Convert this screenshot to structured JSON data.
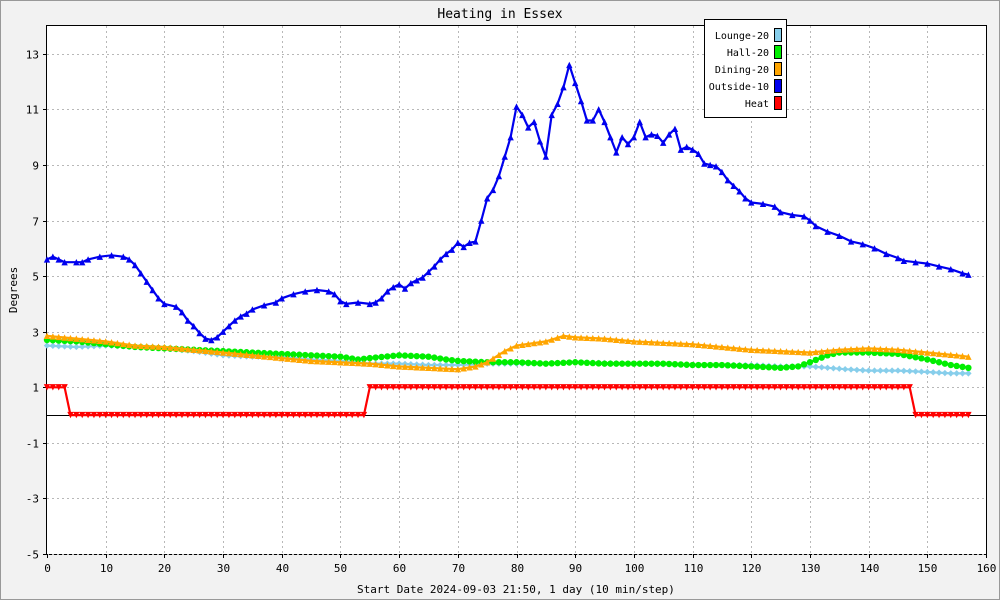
{
  "chart_data": {
    "type": "line",
    "title": "Heating in Essex",
    "xlabel": "Start Date 2024-09-03 21:50, 1 day (10 min/step)",
    "ylabel": "Degrees",
    "xlim": [
      0,
      160
    ],
    "ylim": [
      -5,
      14
    ],
    "x_ticks": [
      0,
      10,
      20,
      30,
      40,
      50,
      60,
      70,
      80,
      90,
      100,
      110,
      120,
      130,
      140,
      150,
      160
    ],
    "y_ticks": [
      -5,
      -3,
      -1,
      1,
      3,
      5,
      7,
      9,
      11,
      13
    ],
    "grid": true,
    "legend_position": "top-right",
    "series": [
      {
        "name": "Lounge-20",
        "color": "#87ceeb",
        "marker": "diamond",
        "points": [
          [
            0,
            2.5
          ],
          [
            5,
            2.45
          ],
          [
            10,
            2.5
          ],
          [
            15,
            2.45
          ],
          [
            20,
            2.4
          ],
          [
            25,
            2.3
          ],
          [
            30,
            2.15
          ],
          [
            35,
            2.1
          ],
          [
            40,
            2.1
          ],
          [
            45,
            2.0
          ],
          [
            50,
            1.95
          ],
          [
            55,
            1.85
          ],
          [
            60,
            1.85
          ],
          [
            65,
            1.8
          ],
          [
            70,
            1.8
          ],
          [
            75,
            1.85
          ],
          [
            80,
            1.85
          ],
          [
            85,
            1.85
          ],
          [
            90,
            1.9
          ],
          [
            100,
            1.85
          ],
          [
            110,
            1.8
          ],
          [
            120,
            1.8
          ],
          [
            125,
            1.75
          ],
          [
            128,
            1.75
          ],
          [
            130,
            1.75
          ],
          [
            133,
            1.7
          ],
          [
            136,
            1.65
          ],
          [
            140,
            1.6
          ],
          [
            145,
            1.6
          ],
          [
            150,
            1.55
          ],
          [
            154,
            1.5
          ],
          [
            157,
            1.5
          ]
        ]
      },
      {
        "name": "Hall-20",
        "color": "#00ee00",
        "marker": "circle",
        "points": [
          [
            0,
            2.7
          ],
          [
            5,
            2.65
          ],
          [
            10,
            2.55
          ],
          [
            15,
            2.45
          ],
          [
            20,
            2.4
          ],
          [
            25,
            2.35
          ],
          [
            30,
            2.3
          ],
          [
            35,
            2.25
          ],
          [
            40,
            2.2
          ],
          [
            45,
            2.15
          ],
          [
            50,
            2.1
          ],
          [
            53,
            2.0
          ],
          [
            55,
            2.05
          ],
          [
            60,
            2.15
          ],
          [
            65,
            2.1
          ],
          [
            68,
            2.0
          ],
          [
            70,
            1.95
          ],
          [
            75,
            1.9
          ],
          [
            80,
            1.9
          ],
          [
            85,
            1.85
          ],
          [
            90,
            1.9
          ],
          [
            95,
            1.85
          ],
          [
            100,
            1.85
          ],
          [
            105,
            1.85
          ],
          [
            110,
            1.8
          ],
          [
            115,
            1.8
          ],
          [
            120,
            1.75
          ],
          [
            125,
            1.7
          ],
          [
            128,
            1.75
          ],
          [
            130,
            1.9
          ],
          [
            133,
            2.15
          ],
          [
            135,
            2.25
          ],
          [
            140,
            2.25
          ],
          [
            145,
            2.2
          ],
          [
            150,
            2.0
          ],
          [
            154,
            1.8
          ],
          [
            157,
            1.7
          ]
        ]
      },
      {
        "name": "Dining-20",
        "color": "#ffa500",
        "marker": "triangle",
        "points": [
          [
            0,
            2.85
          ],
          [
            5,
            2.75
          ],
          [
            10,
            2.65
          ],
          [
            15,
            2.5
          ],
          [
            20,
            2.45
          ],
          [
            25,
            2.35
          ],
          [
            30,
            2.25
          ],
          [
            35,
            2.15
          ],
          [
            40,
            2.05
          ],
          [
            45,
            1.95
          ],
          [
            50,
            1.9
          ],
          [
            55,
            1.85
          ],
          [
            60,
            1.75
          ],
          [
            65,
            1.7
          ],
          [
            70,
            1.65
          ],
          [
            73,
            1.75
          ],
          [
            75,
            1.9
          ],
          [
            78,
            2.3
          ],
          [
            80,
            2.5
          ],
          [
            85,
            2.65
          ],
          [
            88,
            2.85
          ],
          [
            90,
            2.8
          ],
          [
            95,
            2.75
          ],
          [
            100,
            2.65
          ],
          [
            105,
            2.6
          ],
          [
            110,
            2.55
          ],
          [
            115,
            2.45
          ],
          [
            120,
            2.35
          ],
          [
            125,
            2.3
          ],
          [
            130,
            2.25
          ],
          [
            135,
            2.35
          ],
          [
            140,
            2.4
          ],
          [
            145,
            2.35
          ],
          [
            150,
            2.25
          ],
          [
            155,
            2.15
          ],
          [
            157,
            2.1
          ]
        ]
      },
      {
        "name": "Outside-10",
        "color": "#0000ee",
        "marker": "triangle",
        "points": [
          [
            0,
            5.6
          ],
          [
            1,
            5.7
          ],
          [
            2,
            5.6
          ],
          [
            3,
            5.5
          ],
          [
            5,
            5.5
          ],
          [
            6,
            5.5
          ],
          [
            7,
            5.6
          ],
          [
            9,
            5.7
          ],
          [
            11,
            5.75
          ],
          [
            13,
            5.7
          ],
          [
            14,
            5.6
          ],
          [
            15,
            5.4
          ],
          [
            16,
            5.1
          ],
          [
            17,
            4.8
          ],
          [
            18,
            4.5
          ],
          [
            19,
            4.2
          ],
          [
            20,
            4.0
          ],
          [
            22,
            3.9
          ],
          [
            23,
            3.7
          ],
          [
            24,
            3.4
          ],
          [
            25,
            3.2
          ],
          [
            26,
            2.95
          ],
          [
            27,
            2.75
          ],
          [
            28,
            2.7
          ],
          [
            29,
            2.8
          ],
          [
            30,
            3.0
          ],
          [
            31,
            3.2
          ],
          [
            32,
            3.4
          ],
          [
            33,
            3.55
          ],
          [
            34,
            3.65
          ],
          [
            35,
            3.8
          ],
          [
            37,
            3.95
          ],
          [
            39,
            4.05
          ],
          [
            40,
            4.2
          ],
          [
            42,
            4.35
          ],
          [
            44,
            4.45
          ],
          [
            46,
            4.5
          ],
          [
            48,
            4.45
          ],
          [
            49,
            4.35
          ],
          [
            50,
            4.1
          ],
          [
            51,
            4.0
          ],
          [
            53,
            4.05
          ],
          [
            55,
            4.0
          ],
          [
            56,
            4.05
          ],
          [
            57,
            4.2
          ],
          [
            58,
            4.45
          ],
          [
            59,
            4.6
          ],
          [
            60,
            4.7
          ],
          [
            61,
            4.55
          ],
          [
            62,
            4.75
          ],
          [
            63,
            4.85
          ],
          [
            64,
            4.95
          ],
          [
            65,
            5.15
          ],
          [
            66,
            5.35
          ],
          [
            67,
            5.6
          ],
          [
            68,
            5.8
          ],
          [
            69,
            5.95
          ],
          [
            70,
            6.2
          ],
          [
            71,
            6.05
          ],
          [
            72,
            6.2
          ],
          [
            73,
            6.25
          ],
          [
            74,
            7.0
          ],
          [
            75,
            7.8
          ],
          [
            76,
            8.1
          ],
          [
            77,
            8.6
          ],
          [
            78,
            9.3
          ],
          [
            79,
            10.0
          ],
          [
            80,
            11.1
          ],
          [
            81,
            10.8
          ],
          [
            82,
            10.35
          ],
          [
            83,
            10.55
          ],
          [
            84,
            9.85
          ],
          [
            85,
            9.3
          ],
          [
            86,
            10.8
          ],
          [
            87,
            11.2
          ],
          [
            88,
            11.8
          ],
          [
            89,
            12.6
          ],
          [
            90,
            11.95
          ],
          [
            91,
            11.3
          ],
          [
            92,
            10.6
          ],
          [
            93,
            10.6
          ],
          [
            94,
            11.0
          ],
          [
            95,
            10.55
          ],
          [
            96,
            10.0
          ],
          [
            97,
            9.45
          ],
          [
            98,
            10.0
          ],
          [
            99,
            9.75
          ],
          [
            100,
            10.0
          ],
          [
            101,
            10.55
          ],
          [
            102,
            10.0
          ],
          [
            103,
            10.1
          ],
          [
            104,
            10.05
          ],
          [
            105,
            9.8
          ],
          [
            106,
            10.1
          ],
          [
            107,
            10.3
          ],
          [
            108,
            9.55
          ],
          [
            109,
            9.65
          ],
          [
            110,
            9.55
          ],
          [
            111,
            9.4
          ],
          [
            112,
            9.05
          ],
          [
            113,
            9.0
          ],
          [
            114,
            8.95
          ],
          [
            115,
            8.75
          ],
          [
            116,
            8.45
          ],
          [
            117,
            8.25
          ],
          [
            118,
            8.05
          ],
          [
            119,
            7.8
          ],
          [
            120,
            7.65
          ],
          [
            122,
            7.6
          ],
          [
            124,
            7.5
          ],
          [
            125,
            7.3
          ],
          [
            127,
            7.2
          ],
          [
            129,
            7.15
          ],
          [
            130,
            7.0
          ],
          [
            131,
            6.8
          ],
          [
            133,
            6.6
          ],
          [
            135,
            6.45
          ],
          [
            137,
            6.25
          ],
          [
            139,
            6.15
          ],
          [
            141,
            6.0
          ],
          [
            143,
            5.8
          ],
          [
            145,
            5.65
          ],
          [
            146,
            5.55
          ],
          [
            148,
            5.5
          ],
          [
            150,
            5.45
          ],
          [
            152,
            5.35
          ],
          [
            154,
            5.25
          ],
          [
            156,
            5.1
          ],
          [
            157,
            5.05
          ]
        ]
      },
      {
        "name": "Heat",
        "color": "#ff0000",
        "marker": "triangle-down",
        "points": [
          [
            0,
            1
          ],
          [
            3,
            1
          ],
          [
            4,
            0
          ],
          [
            54,
            0
          ],
          [
            55,
            1
          ],
          [
            147,
            1
          ],
          [
            148,
            0
          ],
          [
            157,
            0
          ]
        ]
      }
    ]
  }
}
